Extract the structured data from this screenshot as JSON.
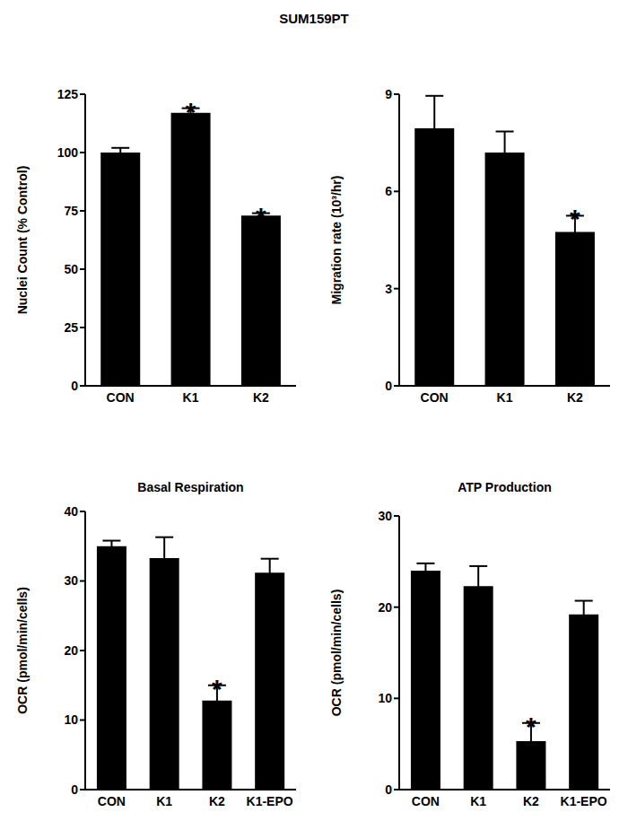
{
  "title": "SUM159PT",
  "chart_data": [
    {
      "type": "bar",
      "y_label": "Nuclei Count (% Control)",
      "categories": [
        "CON",
        "K1",
        "K2"
      ],
      "values": [
        100,
        117,
        73
      ],
      "errors": [
        2,
        2,
        1
      ],
      "color": "#000000",
      "ylim": [
        0,
        125
      ],
      "yticks": [
        0,
        25,
        50,
        75,
        100,
        125
      ],
      "annotations": [
        {
          "category": "K1",
          "text": "*"
        },
        {
          "category": "K2",
          "text": "*"
        }
      ]
    },
    {
      "type": "bar",
      "y_label": "Migration rate (10³/hr)",
      "categories": [
        "CON",
        "K1",
        "K2"
      ],
      "values": [
        7.95,
        7.2,
        4.75
      ],
      "errors": [
        1.0,
        0.65,
        0.5
      ],
      "color": "#000000",
      "ylim": [
        0,
        9
      ],
      "yticks": [
        0,
        3,
        6,
        9
      ],
      "annotations": [
        {
          "category": "K2",
          "text": "*"
        }
      ]
    },
    {
      "type": "bar",
      "title": "Basal Respiration",
      "y_label": "OCR (pmol/min/cells)",
      "categories": [
        "CON",
        "K1",
        "K2",
        "K1-EPO"
      ],
      "values": [
        35,
        33.3,
        12.8,
        31.2
      ],
      "errors": [
        0.8,
        3,
        2.2,
        2
      ],
      "color": "#000000",
      "ylim": [
        0,
        40
      ],
      "yticks": [
        0,
        10,
        20,
        30,
        40
      ],
      "annotations": [
        {
          "category": "K2",
          "text": "*"
        }
      ]
    },
    {
      "type": "bar",
      "title": "ATP Production",
      "y_label": "OCR (pmol/min/cells)",
      "categories": [
        "CON",
        "K1",
        "K2",
        "K1-EPO"
      ],
      "values": [
        24,
        22.3,
        5.3,
        19.2
      ],
      "errors": [
        0.8,
        2.2,
        2,
        1.5
      ],
      "color": "#000000",
      "ylim": [
        0,
        30
      ],
      "yticks": [
        0,
        10,
        20,
        30
      ],
      "annotations": [
        {
          "category": "K2",
          "text": "*"
        }
      ]
    }
  ]
}
